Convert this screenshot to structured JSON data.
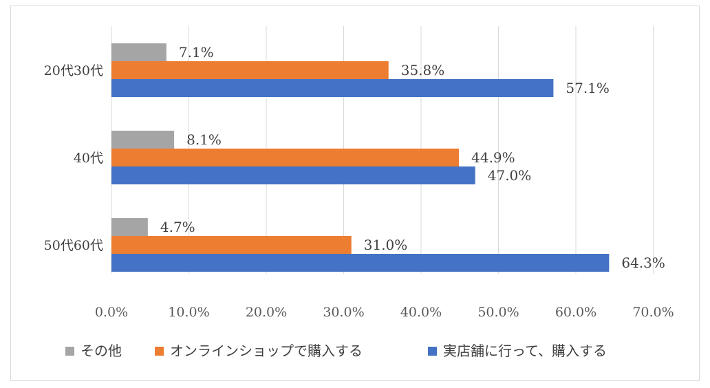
{
  "chart_data": {
    "type": "bar",
    "orientation": "horizontal",
    "title": "",
    "xlabel": "",
    "ylabel": "",
    "xlim": [
      0,
      70
    ],
    "x_ticks": [
      "0.0%",
      "10.0%",
      "20.0%",
      "30.0%",
      "40.0%",
      "50.0%",
      "60.0%",
      "70.0%"
    ],
    "grid": true,
    "legend_position": "bottom",
    "categories": [
      "20代30代",
      "40代",
      "50代60代"
    ],
    "series": [
      {
        "name": "その他",
        "color": "#a5a5a5",
        "values": [
          7.1,
          8.1,
          4.7
        ],
        "labels": [
          "7.1%",
          "8.1%",
          "4.7%"
        ]
      },
      {
        "name": "オンラインショップで購入する",
        "color": "#ed7d31",
        "values": [
          35.8,
          44.9,
          31.0
        ],
        "labels": [
          "35.8%",
          "44.9%",
          "31.0%"
        ]
      },
      {
        "name": "実店舗に行って、購入する",
        "color": "#4472c4",
        "values": [
          57.1,
          47.0,
          64.3
        ],
        "labels": [
          "57.1%",
          "47.0%",
          "64.3%"
        ]
      }
    ]
  }
}
